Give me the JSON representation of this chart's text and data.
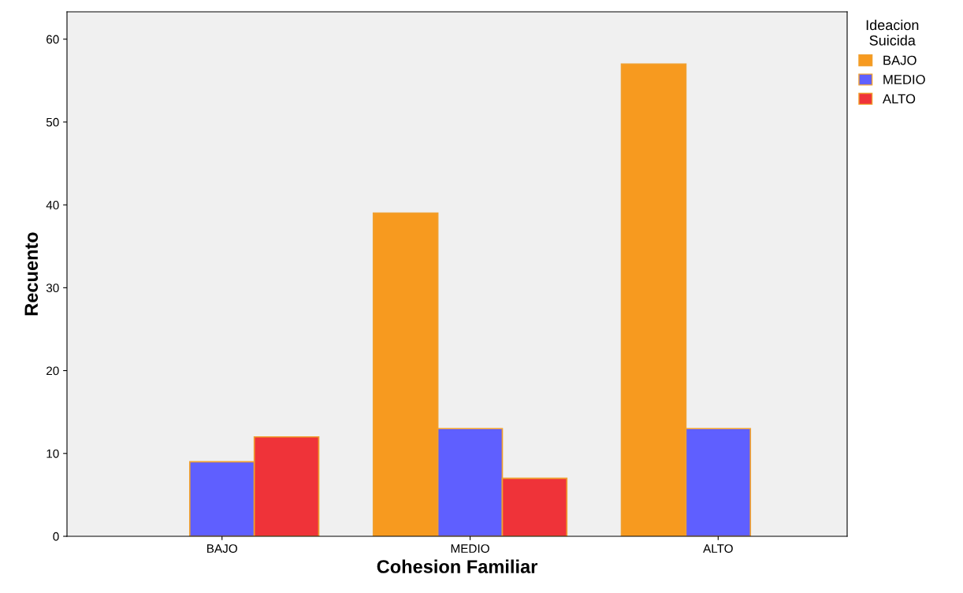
{
  "chart_data": {
    "type": "bar",
    "xlabel": "Cohesion Familiar",
    "ylabel": "Recuento",
    "legend_title": "Ideacion\nSuicida",
    "categories": [
      "BAJO",
      "MEDIO",
      "ALTO"
    ],
    "series": [
      {
        "name": "BAJO",
        "color": "#f79a1f",
        "values": [
          null,
          39,
          57
        ]
      },
      {
        "name": "MEDIO",
        "color": "#5f5fff",
        "values": [
          9,
          13,
          13
        ]
      },
      {
        "name": "ALTO",
        "color": "#ef3339",
        "values": [
          12,
          7,
          null
        ]
      }
    ],
    "ylim": [
      0,
      63.3
    ],
    "yticks": [
      0,
      10,
      20,
      30,
      40,
      50,
      60
    ],
    "grid": false,
    "legend": "top right"
  }
}
